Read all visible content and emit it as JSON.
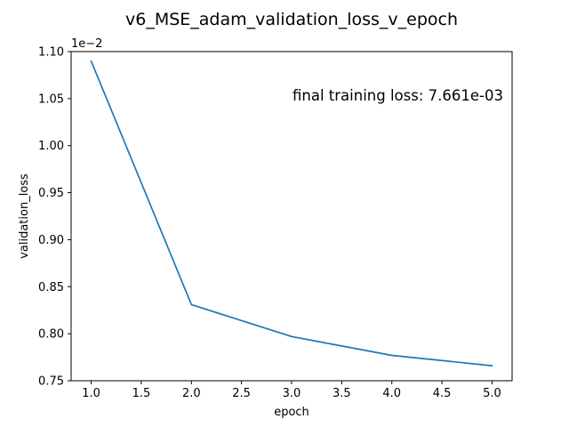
{
  "chart_data": {
    "type": "line",
    "title": "v6_MSE_adam_validation_loss_v_epoch",
    "xlabel": "epoch",
    "ylabel": "validation_loss",
    "y_offset_label": "1e−2",
    "y_scale_factor": 0.01,
    "xlim": [
      0.8,
      5.2
    ],
    "ylim": [
      0.0075,
      0.011
    ],
    "x_ticks": [
      1.0,
      1.5,
      2.0,
      2.5,
      3.0,
      3.5,
      4.0,
      4.5,
      5.0
    ],
    "x_tick_labels": [
      "1.0",
      "1.5",
      "2.0",
      "2.5",
      "3.0",
      "3.5",
      "4.0",
      "4.5",
      "5.0"
    ],
    "y_ticks": [
      0.0075,
      0.008,
      0.0085,
      0.009,
      0.0095,
      0.01,
      0.0105,
      0.011
    ],
    "y_tick_labels": [
      "0.75",
      "0.80",
      "0.85",
      "0.90",
      "0.95",
      "1.00",
      "1.05",
      "1.10"
    ],
    "grid": false,
    "legend": "none",
    "annotation": "final training loss: 7.661e-03",
    "series": [
      {
        "x": [
          1,
          2,
          3,
          4,
          5
        ],
        "values": [
          0.0109,
          0.00831,
          0.00797,
          0.00777,
          0.00766
        ],
        "color": "#1f77b4"
      }
    ]
  }
}
